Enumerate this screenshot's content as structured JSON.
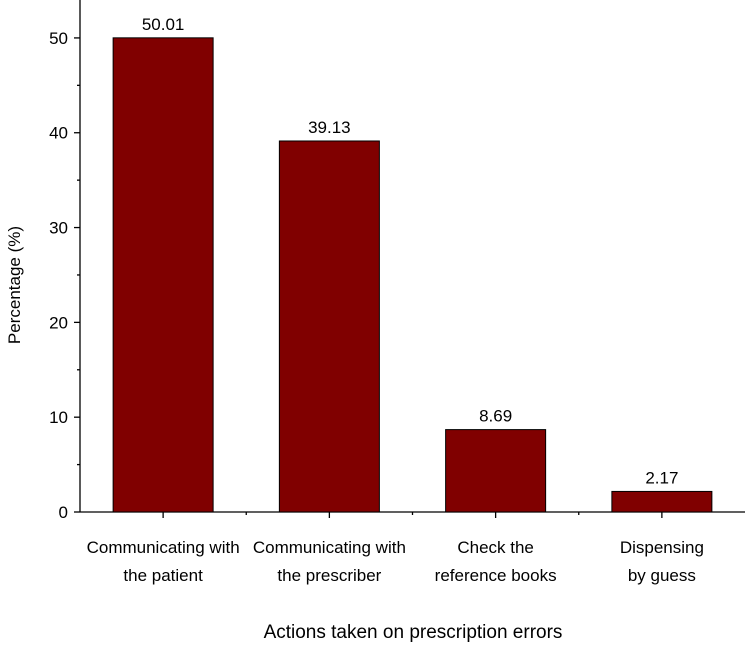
{
  "chart_data": {
    "type": "bar",
    "categories": [
      "Communicating with\nthe patient",
      "Communicating with\nthe prescriber",
      "Check the\nreference books",
      "Dispensing\nby guess"
    ],
    "values": [
      50.01,
      39.13,
      8.69,
      2.17
    ],
    "color": "#800000",
    "xlabel": "Actions taken on prescription errors",
    "ylabel": "Percentage (%)",
    "ylim": [
      0,
      54
    ],
    "yticks": [
      0,
      10,
      20,
      30,
      40,
      50
    ]
  }
}
